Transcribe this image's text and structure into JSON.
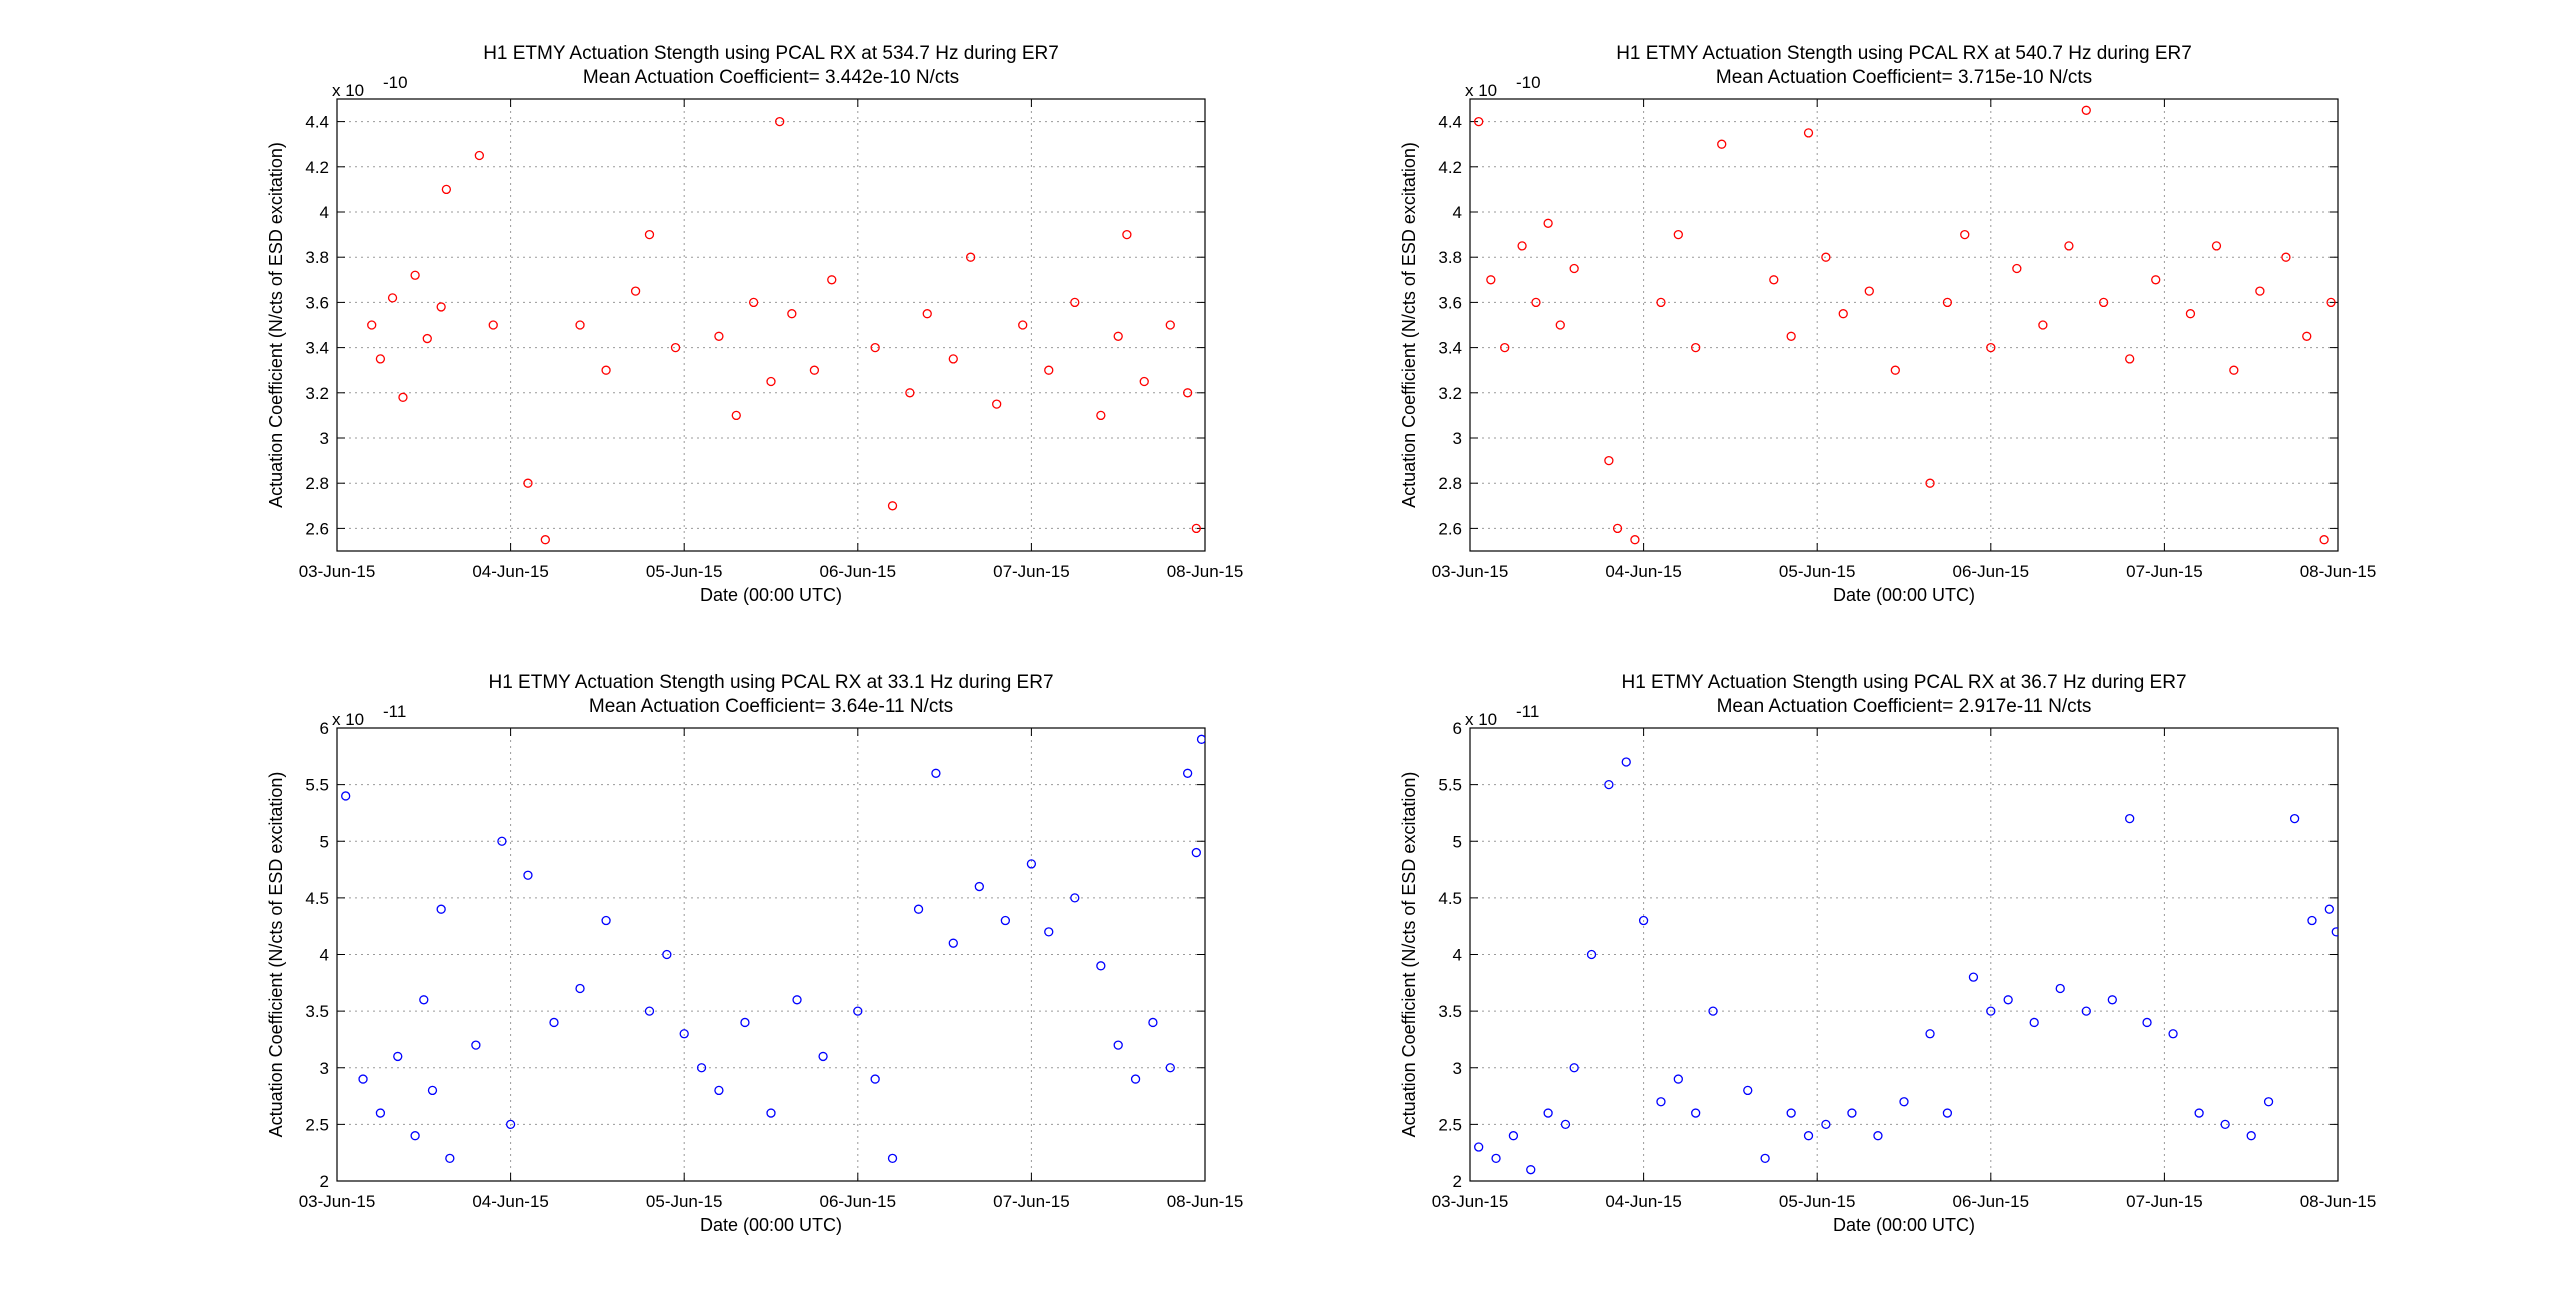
{
  "chart_data": [
    {
      "type": "scatter",
      "title": "H1 ETMY Actuation Stength using PCAL RX at 534.7 Hz  during ER7",
      "subtitle": "Mean Actuation Coefficient= 3.442e-10 N/cts",
      "xlabel": "Date (00:00 UTC)",
      "ylabel": "Actuation Coefficient (N/cts of ESD excitation)",
      "y_exponent": "x 10",
      "y_exponent_power": "-10",
      "x_ticks": [
        "03-Jun-15",
        "04-Jun-15",
        "05-Jun-15",
        "06-Jun-15",
        "07-Jun-15",
        "08-Jun-15"
      ],
      "y_ticks": [
        "2.6",
        "2.8",
        "3",
        "3.2",
        "3.4",
        "3.6",
        "3.8",
        "4",
        "4.2",
        "4.4"
      ],
      "xlim": [
        "03-Jun-15",
        "08-Jun-15"
      ],
      "ylim": [
        2.5,
        4.5
      ],
      "grid": true,
      "marker": "circle",
      "color": "#ff0000",
      "series": [
        {
          "points": [
            [
              0.2,
              3.5
            ],
            [
              0.25,
              3.35
            ],
            [
              0.32,
              3.62
            ],
            [
              0.38,
              3.18
            ],
            [
              0.45,
              3.72
            ],
            [
              0.52,
              3.44
            ],
            [
              0.6,
              3.58
            ],
            [
              0.63,
              4.1
            ],
            [
              0.82,
              4.25
            ],
            [
              0.9,
              3.5
            ],
            [
              1.1,
              2.8
            ],
            [
              1.2,
              2.55
            ],
            [
              1.4,
              3.5
            ],
            [
              1.55,
              3.3
            ],
            [
              1.72,
              3.65
            ],
            [
              1.8,
              3.9
            ],
            [
              1.95,
              3.4
            ],
            [
              2.2,
              3.45
            ],
            [
              2.3,
              3.1
            ],
            [
              2.4,
              3.6
            ],
            [
              2.5,
              3.25
            ],
            [
              2.55,
              4.4
            ],
            [
              2.62,
              3.55
            ],
            [
              2.75,
              3.3
            ],
            [
              2.85,
              3.7
            ],
            [
              3.1,
              3.4
            ],
            [
              3.2,
              2.7
            ],
            [
              3.3,
              3.2
            ],
            [
              3.4,
              3.55
            ],
            [
              3.55,
              3.35
            ],
            [
              3.65,
              3.8
            ],
            [
              3.8,
              3.15
            ],
            [
              3.95,
              3.5
            ],
            [
              4.1,
              3.3
            ],
            [
              4.25,
              3.6
            ],
            [
              4.4,
              3.1
            ],
            [
              4.5,
              3.45
            ],
            [
              4.55,
              3.9
            ],
            [
              4.65,
              3.25
            ],
            [
              4.8,
              3.5
            ],
            [
              4.9,
              3.2
            ],
            [
              4.95,
              2.6
            ]
          ]
        }
      ]
    },
    {
      "type": "scatter",
      "title": "H1 ETMY Actuation Stength using PCAL RX at 540.7 Hz  during ER7",
      "subtitle": "Mean Actuation Coefficient= 3.715e-10 N/cts",
      "xlabel": "Date (00:00 UTC)",
      "ylabel": "Actuation Coefficient (N/cts of ESD excitation)",
      "y_exponent": "x 10",
      "y_exponent_power": "-10",
      "x_ticks": [
        "03-Jun-15",
        "04-Jun-15",
        "05-Jun-15",
        "06-Jun-15",
        "07-Jun-15",
        "08-Jun-15"
      ],
      "y_ticks": [
        "2.6",
        "2.8",
        "3",
        "3.2",
        "3.4",
        "3.6",
        "3.8",
        "4",
        "4.2",
        "4.4"
      ],
      "xlim": [
        "03-Jun-15",
        "08-Jun-15"
      ],
      "ylim": [
        2.5,
        4.5
      ],
      "grid": true,
      "marker": "circle",
      "color": "#ff0000",
      "series": [
        {
          "points": [
            [
              0.05,
              4.4
            ],
            [
              0.12,
              3.7
            ],
            [
              0.2,
              3.4
            ],
            [
              0.3,
              3.85
            ],
            [
              0.38,
              3.6
            ],
            [
              0.45,
              3.95
            ],
            [
              0.52,
              3.5
            ],
            [
              0.6,
              3.75
            ],
            [
              0.8,
              2.9
            ],
            [
              0.85,
              2.6
            ],
            [
              0.95,
              2.55
            ],
            [
              1.1,
              3.6
            ],
            [
              1.2,
              3.9
            ],
            [
              1.3,
              3.4
            ],
            [
              1.45,
              4.3
            ],
            [
              1.75,
              3.7
            ],
            [
              1.85,
              3.45
            ],
            [
              1.95,
              4.35
            ],
            [
              2.05,
              3.8
            ],
            [
              2.15,
              3.55
            ],
            [
              2.3,
              3.65
            ],
            [
              2.45,
              3.3
            ],
            [
              2.65,
              2.8
            ],
            [
              2.75,
              3.6
            ],
            [
              2.85,
              3.9
            ],
            [
              3.0,
              3.4
            ],
            [
              3.15,
              3.75
            ],
            [
              3.3,
              3.5
            ],
            [
              3.45,
              3.85
            ],
            [
              3.55,
              4.45
            ],
            [
              3.65,
              3.6
            ],
            [
              3.8,
              3.35
            ],
            [
              3.95,
              3.7
            ],
            [
              4.15,
              3.55
            ],
            [
              4.3,
              3.85
            ],
            [
              4.4,
              3.3
            ],
            [
              4.55,
              3.65
            ],
            [
              4.7,
              3.8
            ],
            [
              4.82,
              3.45
            ],
            [
              4.92,
              2.55
            ],
            [
              4.96,
              3.6
            ]
          ]
        }
      ]
    },
    {
      "type": "scatter",
      "title": "H1 ETMY Actuation Stength using PCAL RX at 33.1 Hz  during ER7",
      "subtitle": "Mean Actuation Coefficient= 3.64e-11 N/cts",
      "xlabel": "Date (00:00 UTC)",
      "ylabel": "Actuation Coefficient (N/cts of ESD excitation)",
      "y_exponent": "x 10",
      "y_exponent_power": "-11",
      "x_ticks": [
        "03-Jun-15",
        "04-Jun-15",
        "05-Jun-15",
        "06-Jun-15",
        "07-Jun-15",
        "08-Jun-15"
      ],
      "y_ticks": [
        "2",
        "2.5",
        "3",
        "3.5",
        "4",
        "4.5",
        "5",
        "5.5",
        "6"
      ],
      "xlim": [
        "03-Jun-15",
        "08-Jun-15"
      ],
      "ylim": [
        2,
        6
      ],
      "grid": true,
      "marker": "circle",
      "color": "#0000ff",
      "series": [
        {
          "points": [
            [
              0.05,
              5.4
            ],
            [
              0.15,
              2.9
            ],
            [
              0.25,
              2.6
            ],
            [
              0.35,
              3.1
            ],
            [
              0.45,
              2.4
            ],
            [
              0.5,
              3.6
            ],
            [
              0.55,
              2.8
            ],
            [
              0.6,
              4.4
            ],
            [
              0.65,
              2.2
            ],
            [
              0.8,
              3.2
            ],
            [
              0.95,
              5.0
            ],
            [
              1.0,
              2.5
            ],
            [
              1.1,
              4.7
            ],
            [
              1.25,
              3.4
            ],
            [
              1.4,
              3.7
            ],
            [
              1.55,
              4.3
            ],
            [
              1.8,
              3.5
            ],
            [
              1.9,
              4.0
            ],
            [
              2.0,
              3.3
            ],
            [
              2.1,
              3.0
            ],
            [
              2.2,
              2.8
            ],
            [
              2.35,
              3.4
            ],
            [
              2.5,
              2.6
            ],
            [
              2.65,
              3.6
            ],
            [
              2.8,
              3.1
            ],
            [
              3.0,
              3.5
            ],
            [
              3.1,
              2.9
            ],
            [
              3.2,
              2.2
            ],
            [
              3.35,
              4.4
            ],
            [
              3.45,
              5.6
            ],
            [
              3.55,
              4.1
            ],
            [
              3.7,
              4.6
            ],
            [
              3.85,
              4.3
            ],
            [
              4.0,
              4.8
            ],
            [
              4.1,
              4.2
            ],
            [
              4.25,
              4.5
            ],
            [
              4.4,
              3.9
            ],
            [
              4.5,
              3.2
            ],
            [
              4.6,
              2.9
            ],
            [
              4.7,
              3.4
            ],
            [
              4.8,
              3.0
            ],
            [
              4.9,
              5.6
            ],
            [
              4.95,
              4.9
            ],
            [
              4.98,
              5.9
            ]
          ]
        }
      ]
    },
    {
      "type": "scatter",
      "title": "H1 ETMY Actuation Stength using PCAL RX at 36.7 Hz  during ER7",
      "subtitle": "Mean Actuation Coefficient= 2.917e-11 N/cts",
      "xlabel": "Date (00:00 UTC)",
      "ylabel": "Actuation Coefficient (N/cts of ESD excitation)",
      "y_exponent": "x 10",
      "y_exponent_power": "-11",
      "x_ticks": [
        "03-Jun-15",
        "04-Jun-15",
        "05-Jun-15",
        "06-Jun-15",
        "07-Jun-15",
        "08-Jun-15"
      ],
      "y_ticks": [
        "2",
        "2.5",
        "3",
        "3.5",
        "4",
        "4.5",
        "5",
        "5.5",
        "6"
      ],
      "xlim": [
        "03-Jun-15",
        "08-Jun-15"
      ],
      "ylim": [
        2,
        6
      ],
      "grid": true,
      "marker": "circle",
      "color": "#0000ff",
      "series": [
        {
          "points": [
            [
              0.05,
              2.3
            ],
            [
              0.15,
              2.2
            ],
            [
              0.25,
              2.4
            ],
            [
              0.35,
              2.1
            ],
            [
              0.45,
              2.6
            ],
            [
              0.55,
              2.5
            ],
            [
              0.6,
              3.0
            ],
            [
              0.7,
              4.0
            ],
            [
              0.8,
              5.5
            ],
            [
              0.9,
              5.7
            ],
            [
              1.0,
              4.3
            ],
            [
              1.1,
              2.7
            ],
            [
              1.2,
              2.9
            ],
            [
              1.3,
              2.6
            ],
            [
              1.4,
              3.5
            ],
            [
              1.6,
              2.8
            ],
            [
              1.7,
              2.2
            ],
            [
              1.85,
              2.6
            ],
            [
              1.95,
              2.4
            ],
            [
              2.05,
              2.5
            ],
            [
              2.2,
              2.6
            ],
            [
              2.35,
              2.4
            ],
            [
              2.5,
              2.7
            ],
            [
              2.65,
              3.3
            ],
            [
              2.75,
              2.6
            ],
            [
              2.9,
              3.8
            ],
            [
              3.0,
              3.5
            ],
            [
              3.1,
              3.6
            ],
            [
              3.25,
              3.4
            ],
            [
              3.4,
              3.7
            ],
            [
              3.55,
              3.5
            ],
            [
              3.7,
              3.6
            ],
            [
              3.8,
              5.2
            ],
            [
              3.9,
              3.4
            ],
            [
              4.05,
              3.3
            ],
            [
              4.2,
              2.6
            ],
            [
              4.35,
              2.5
            ],
            [
              4.5,
              2.4
            ],
            [
              4.6,
              2.7
            ],
            [
              4.75,
              5.2
            ],
            [
              4.85,
              4.3
            ],
            [
              4.95,
              4.4
            ],
            [
              4.99,
              4.2
            ]
          ]
        }
      ]
    }
  ]
}
